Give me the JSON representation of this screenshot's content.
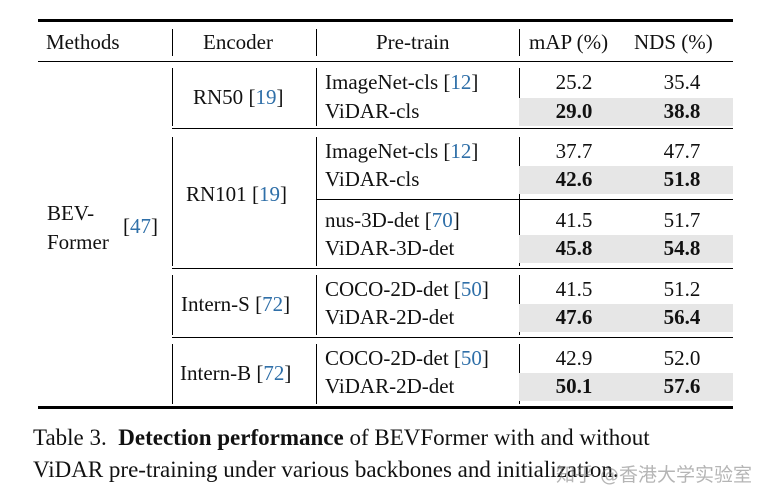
{
  "headers": {
    "methods": "Methods",
    "encoder": "Encoder",
    "pretrain": "Pre-train",
    "map": "mAP (%)",
    "nds": "NDS (%)"
  },
  "method": {
    "line1": "BEV-",
    "line2": "Former",
    "cite": "47"
  },
  "groups": [
    {
      "encoder": "RN50",
      "cite": "19",
      "rows": [
        {
          "pretrain": "ImageNet-cls",
          "cite": "12",
          "map": "25.2",
          "nds": "35.4",
          "bold": false
        },
        {
          "pretrain": "ViDAR-cls",
          "cite": "",
          "map": "29.0",
          "nds": "38.8",
          "bold": true
        }
      ]
    },
    {
      "encoder": "RN101",
      "cite": "19",
      "rows": [
        {
          "pretrain": "ImageNet-cls",
          "cite": "12",
          "map": "37.7",
          "nds": "47.7",
          "bold": false
        },
        {
          "pretrain": "ViDAR-cls",
          "cite": "",
          "map": "42.6",
          "nds": "51.8",
          "bold": true
        },
        {
          "pretrain": "nus-3D-det",
          "cite": "70",
          "map": "41.5",
          "nds": "51.7",
          "bold": false
        },
        {
          "pretrain": "ViDAR-3D-det",
          "cite": "",
          "map": "45.8",
          "nds": "54.8",
          "bold": true
        }
      ]
    },
    {
      "encoder": "Intern-S",
      "cite": "72",
      "rows": [
        {
          "pretrain": "COCO-2D-det",
          "cite": "50",
          "map": "41.5",
          "nds": "51.2",
          "bold": false
        },
        {
          "pretrain": "ViDAR-2D-det",
          "cite": "",
          "map": "47.6",
          "nds": "56.4",
          "bold": true
        }
      ]
    },
    {
      "encoder": "Intern-B",
      "cite": "72",
      "rows": [
        {
          "pretrain": "COCO-2D-det",
          "cite": "50",
          "map": "42.9",
          "nds": "52.0",
          "bold": false
        },
        {
          "pretrain": "ViDAR-2D-det",
          "cite": "",
          "map": "50.1",
          "nds": "57.6",
          "bold": true
        }
      ]
    }
  ],
  "caption": {
    "label": "Table 3.",
    "bold": "Detection performance",
    "rest1": " of BEVFormer with and without",
    "line2": "ViDAR pre-training under various backbones and initialization."
  },
  "watermark": "知乎 @香港大学实验室"
}
